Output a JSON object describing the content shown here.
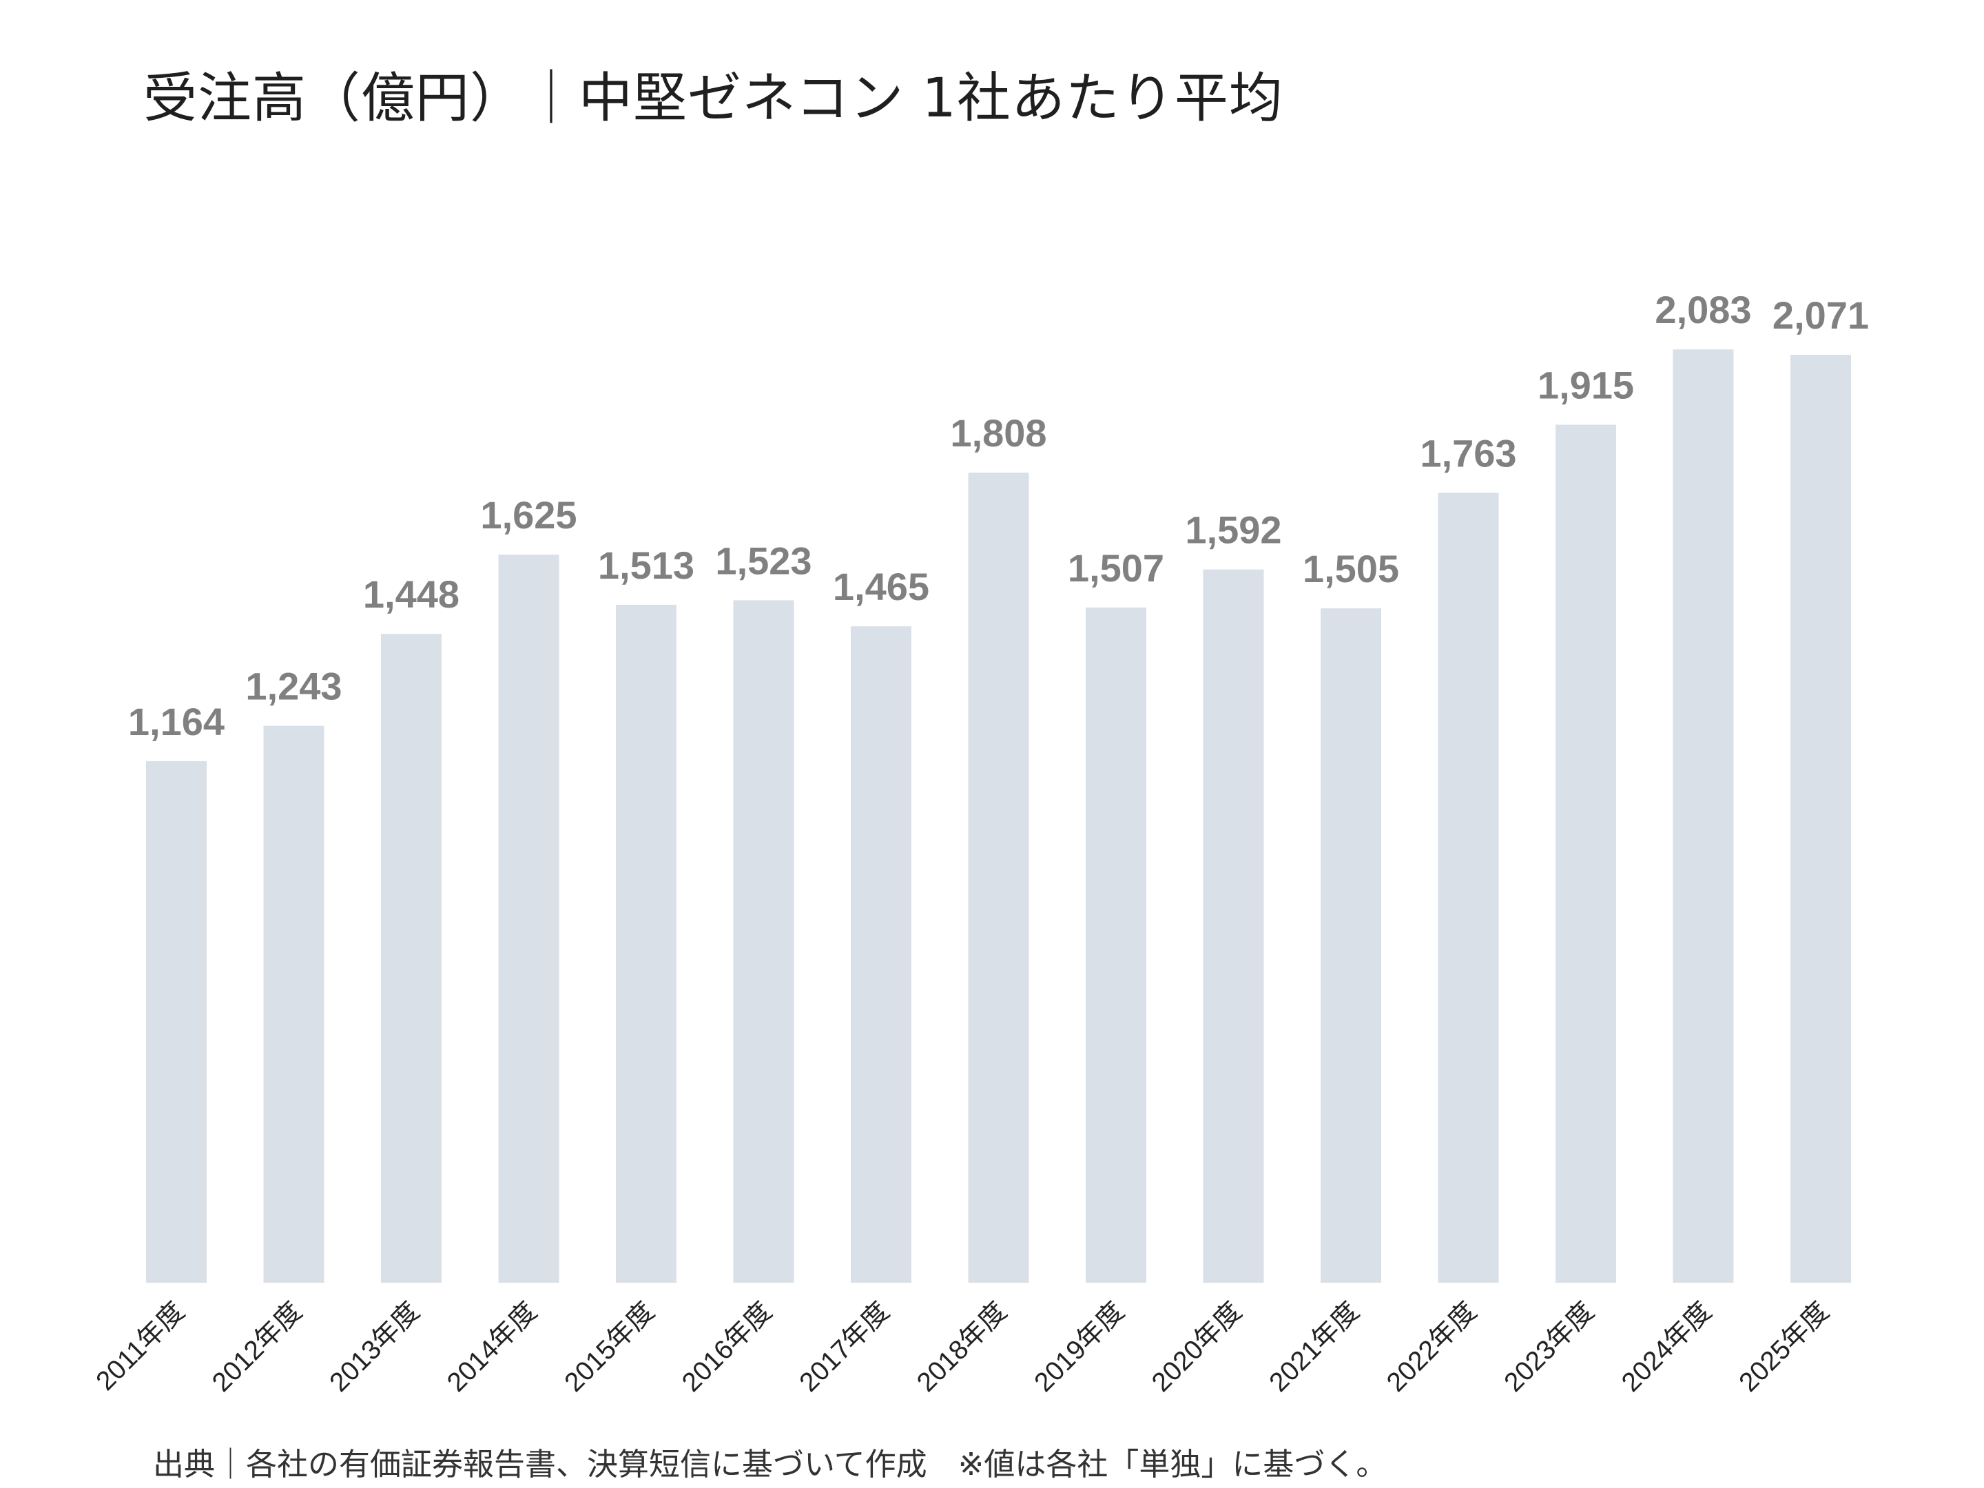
{
  "title": "受注高（億円）｜中堅ゼネコン 1社あたり平均",
  "source_note": "出典｜各社の有価証券報告書、決算短信に基づいて作成　※値は各社「単独」に基づく。",
  "colors": {
    "bar": "#dae0e8",
    "value_label": "#808080",
    "axis_label": "#222222"
  },
  "chart_data": {
    "type": "bar",
    "title": "受注高（億円）｜中堅ゼネコン 1社あたり平均",
    "xlabel": "",
    "ylabel": "",
    "ylim": [
      0,
      2200
    ],
    "grid": false,
    "legend": "none",
    "categories": [
      "2011年度",
      "2012年度",
      "2013年度",
      "2014年度",
      "2015年度",
      "2016年度",
      "2017年度",
      "2018年度",
      "2019年度",
      "2020年度",
      "2021年度",
      "2022年度",
      "2023年度",
      "2024年度",
      "2025年度"
    ],
    "values": [
      1164,
      1243,
      1448,
      1625,
      1513,
      1523,
      1465,
      1808,
      1507,
      1592,
      1505,
      1763,
      1915,
      2083,
      2071
    ],
    "value_labels": [
      "1,164",
      "1,243",
      "1,448",
      "1,625",
      "1,513",
      "1,523",
      "1,465",
      "1,808",
      "1,507",
      "1,592",
      "1,505",
      "1,763",
      "1,915",
      "2,083",
      "2,071"
    ]
  }
}
